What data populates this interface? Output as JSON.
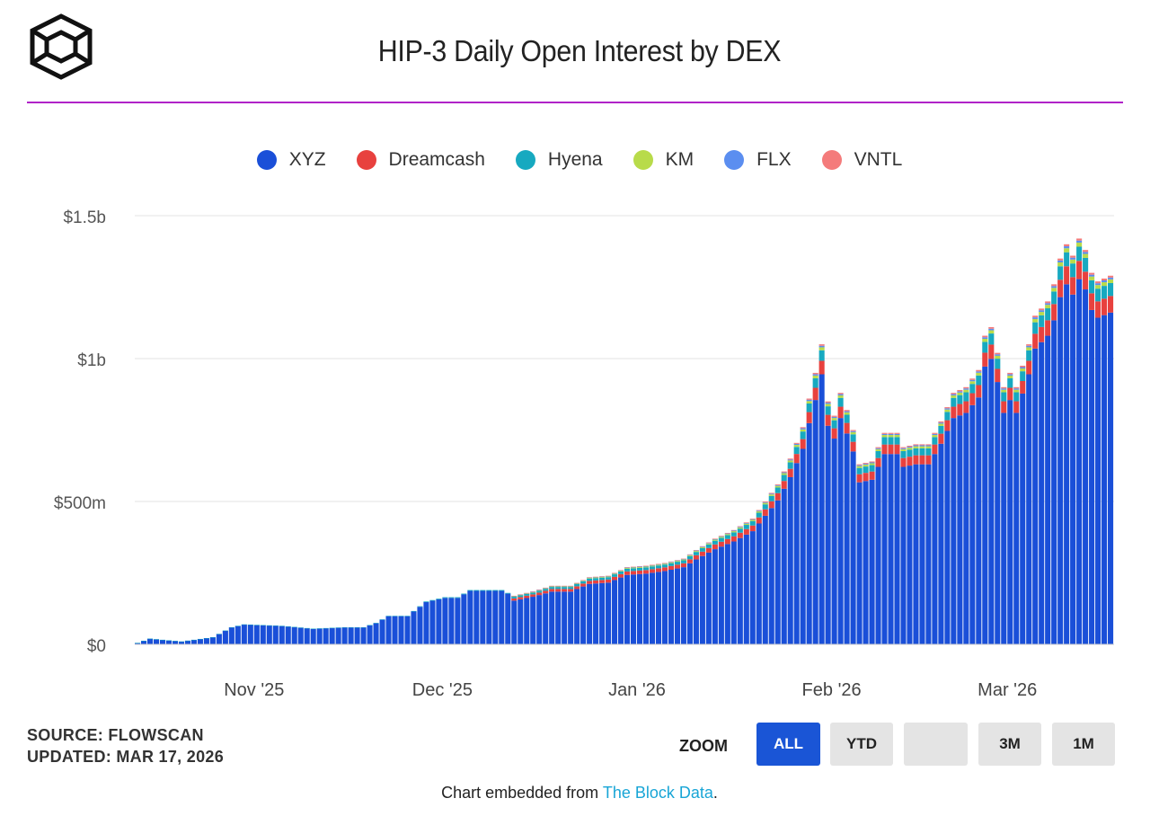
{
  "title": "HIP-3 Daily Open Interest by DEX",
  "legend": [
    {
      "label": "XYZ",
      "color": "#1a4fd8"
    },
    {
      "label": "Dreamcash",
      "color": "#e8413e"
    },
    {
      "label": "Hyena",
      "color": "#17a9c0"
    },
    {
      "label": "KM",
      "color": "#b8db4a"
    },
    {
      "label": "FLX",
      "color": "#5b8ef0"
    },
    {
      "label": "VNTL",
      "color": "#f47b7b"
    }
  ],
  "footer": {
    "source": "SOURCE: FLOWSCAN",
    "updated": "UPDATED: MAR 17, 2026",
    "zoom_label": "ZOOM",
    "zoom_buttons": [
      {
        "label": "ALL",
        "active": true
      },
      {
        "label": "YTD",
        "active": false
      },
      {
        "label": "",
        "active": false
      },
      {
        "label": "3M",
        "active": false
      },
      {
        "label": "1M",
        "active": false
      }
    ],
    "embed_prefix": "Chart embedded from ",
    "embed_link": "The Block Data",
    "embed_suffix": "."
  },
  "chart_data": {
    "type": "bar",
    "stacked": true,
    "title": "HIP-3 Daily Open Interest by DEX",
    "xlabel": "",
    "ylabel": "",
    "ylim": [
      0,
      1500
    ],
    "y_unit": "millions USD",
    "y_ticks": [
      {
        "value": 0,
        "label": "$0"
      },
      {
        "value": 500,
        "label": "$500m"
      },
      {
        "value": 1000,
        "label": "$1b"
      },
      {
        "value": 1500,
        "label": "$1.5b"
      }
    ],
    "x_ticks": [
      {
        "label": "Nov '25",
        "date": "2025-11-01"
      },
      {
        "label": "Dec '25",
        "date": "2025-12-01"
      },
      {
        "label": "Jan '26",
        "date": "2026-01-01"
      },
      {
        "label": "Feb '26",
        "date": "2026-02-01"
      },
      {
        "label": "Mar '26",
        "date": "2026-03-01"
      }
    ],
    "start_date": "2025-10-13",
    "end_date": "2026-03-17",
    "total_keypoints": [
      [
        "2025-10-13",
        5
      ],
      [
        "2025-10-15",
        20
      ],
      [
        "2025-10-20",
        10
      ],
      [
        "2025-10-25",
        25
      ],
      [
        "2025-10-28",
        60
      ],
      [
        "2025-10-30",
        70
      ],
      [
        "2025-11-05",
        65
      ],
      [
        "2025-11-10",
        55
      ],
      [
        "2025-11-15",
        60
      ],
      [
        "2025-11-18",
        60
      ],
      [
        "2025-11-20",
        75
      ],
      [
        "2025-11-22",
        100
      ],
      [
        "2025-11-25",
        100
      ],
      [
        "2025-11-28",
        150
      ],
      [
        "2025-12-01",
        165
      ],
      [
        "2025-12-03",
        165
      ],
      [
        "2025-12-05",
        190
      ],
      [
        "2025-12-10",
        190
      ],
      [
        "2025-12-12",
        170
      ],
      [
        "2025-12-15",
        185
      ],
      [
        "2025-12-18",
        205
      ],
      [
        "2025-12-21",
        205
      ],
      [
        "2025-12-24",
        235
      ],
      [
        "2025-12-27",
        240
      ],
      [
        "2025-12-30",
        270
      ],
      [
        "2026-01-02",
        275
      ],
      [
        "2026-01-05",
        285
      ],
      [
        "2026-01-08",
        300
      ],
      [
        "2026-01-10",
        330
      ],
      [
        "2026-01-13",
        370
      ],
      [
        "2026-01-16",
        400
      ],
      [
        "2026-01-19",
        440
      ],
      [
        "2026-01-21",
        500
      ],
      [
        "2026-01-23",
        560
      ],
      [
        "2026-01-25",
        650
      ],
      [
        "2026-01-27",
        760
      ],
      [
        "2026-01-28",
        860
      ],
      [
        "2026-01-29",
        950
      ],
      [
        "2026-01-30",
        1050
      ],
      [
        "2026-01-31",
        850
      ],
      [
        "2026-02-01",
        800
      ],
      [
        "2026-02-02",
        880
      ],
      [
        "2026-02-03",
        820
      ],
      [
        "2026-02-04",
        750
      ],
      [
        "2026-02-05",
        630
      ],
      [
        "2026-02-07",
        640
      ],
      [
        "2026-02-09",
        740
      ],
      [
        "2026-02-11",
        740
      ],
      [
        "2026-02-12",
        690
      ],
      [
        "2026-02-14",
        700
      ],
      [
        "2026-02-16",
        700
      ],
      [
        "2026-02-18",
        780
      ],
      [
        "2026-02-20",
        880
      ],
      [
        "2026-02-22",
        900
      ],
      [
        "2026-02-24",
        960
      ],
      [
        "2026-02-25",
        1080
      ],
      [
        "2026-02-26",
        1110
      ],
      [
        "2026-02-27",
        1020
      ],
      [
        "2026-02-28",
        900
      ],
      [
        "2026-03-01",
        950
      ],
      [
        "2026-03-02",
        900
      ],
      [
        "2026-03-04",
        1050
      ],
      [
        "2026-03-05",
        1150
      ],
      [
        "2026-03-07",
        1200
      ],
      [
        "2026-03-08",
        1260
      ],
      [
        "2026-03-09",
        1350
      ],
      [
        "2026-03-10",
        1400
      ],
      [
        "2026-03-11",
        1360
      ],
      [
        "2026-03-12",
        1420
      ],
      [
        "2026-03-13",
        1380
      ],
      [
        "2026-03-14",
        1300
      ],
      [
        "2026-03-15",
        1270
      ],
      [
        "2026-03-17",
        1290
      ]
    ],
    "series_shares": {
      "note": "approximate share of daily total",
      "XYZ": 0.9,
      "Dreamcash": 0.045,
      "Hyena": 0.035,
      "KM": 0.01,
      "FLX": 0.005,
      "VNTL": 0.005
    }
  }
}
